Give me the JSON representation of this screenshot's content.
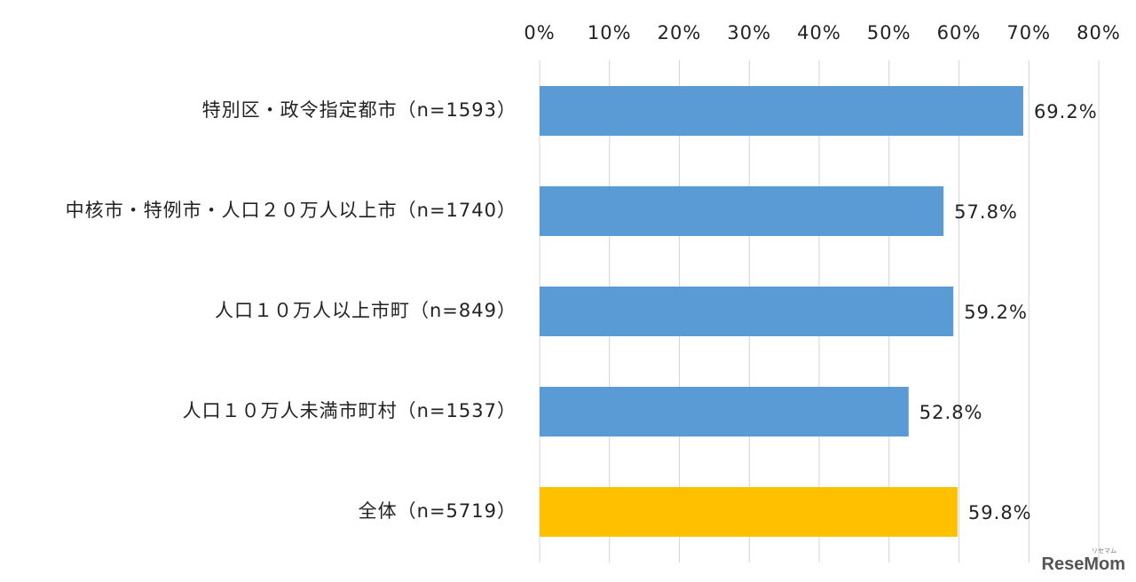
{
  "chart_data": {
    "type": "bar",
    "orientation": "horizontal",
    "categories": [
      "特別区・政令指定都市（n=1593）",
      "中核市・特例市・人口２０万人以上市（n=1740）",
      "人口１０万人以上市町（n=849）",
      "人口１０万人未満市町村（n=1537）",
      "全体（n=5719）"
    ],
    "values": [
      69.2,
      57.8,
      59.2,
      52.8,
      59.8
    ],
    "data_labels": [
      "69.2%",
      "57.8%",
      "59.2%",
      "52.8%",
      "59.8%"
    ],
    "bar_colors": [
      "#5b9bd5",
      "#5b9bd5",
      "#5b9bd5",
      "#5b9bd5",
      "#ffc000"
    ],
    "xlim": [
      0,
      80
    ],
    "x_ticks": [
      0,
      10,
      20,
      30,
      40,
      50,
      60,
      70,
      80
    ],
    "x_tick_labels": [
      "0%",
      "10%",
      "20%",
      "30%",
      "40%",
      "50%",
      "60%",
      "70%",
      "80%"
    ],
    "x_axis_position": "top",
    "grid": true,
    "title": "",
    "xlabel": "",
    "ylabel": ""
  },
  "watermark": {
    "text": "ReseMom",
    "small_text": "リセマム"
  }
}
